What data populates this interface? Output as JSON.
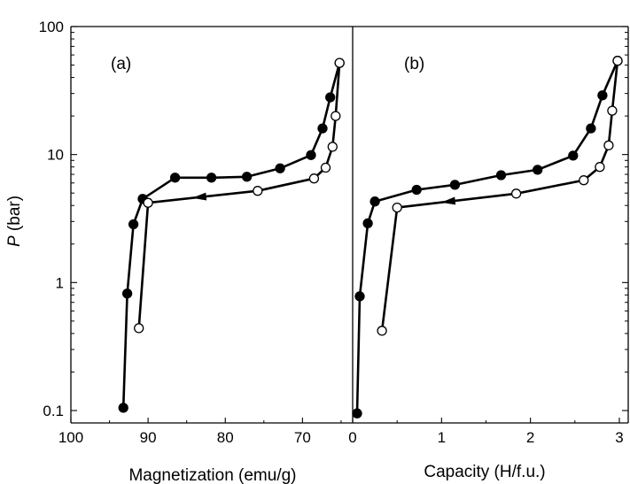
{
  "chart_data": [
    {
      "type": "scatter",
      "panel_label": "(a)",
      "xlabel": "Magnetization (emu/g)",
      "ylabel_symbol": "P",
      "ylabel_unit": " (bar)",
      "y_scale": "log",
      "xlim": [
        100,
        63.5
      ],
      "ylim": [
        0.08,
        100
      ],
      "x_ticks": [
        100,
        90,
        80,
        70
      ],
      "x_tick_labels": [
        "100",
        "90",
        "80",
        "70"
      ],
      "y_ticks": [
        0.1,
        1,
        10,
        100
      ],
      "y_tick_labels": [
        "0.1",
        "1",
        "10",
        "100"
      ],
      "grid": false,
      "series": [
        {
          "marker": "filled-circle",
          "x": [
            93.2,
            92.7,
            91.9,
            90.7,
            86.5,
            81.8,
            77.2,
            72.9,
            68.9,
            67.4,
            66.4,
            65.2
          ],
          "y": [
            0.105,
            0.82,
            2.85,
            4.5,
            6.6,
            6.6,
            6.7,
            7.8,
            9.9,
            16,
            28,
            52
          ]
        },
        {
          "marker": "open-circle",
          "arrow": "points-left",
          "x": [
            91.2,
            90.0,
            75.8,
            68.5,
            67.0,
            66.1,
            65.7,
            65.2
          ],
          "y": [
            0.44,
            4.2,
            5.2,
            6.5,
            7.9,
            11.5,
            20,
            52
          ]
        }
      ]
    },
    {
      "type": "scatter",
      "panel_label": "(b)",
      "xlabel": "Capacity (H/f.u.)",
      "y_scale": "log",
      "xlim": [
        0,
        3.1
      ],
      "ylim": [
        0.08,
        100
      ],
      "x_ticks": [
        0,
        1,
        2,
        3
      ],
      "x_tick_labels": [
        "0",
        "1",
        "2",
        "3"
      ],
      "grid": false,
      "series": [
        {
          "marker": "filled-circle",
          "x": [
            0.05,
            0.08,
            0.17,
            0.25,
            0.72,
            1.15,
            1.67,
            2.08,
            2.48,
            2.68,
            2.81,
            2.98
          ],
          "y": [
            0.095,
            0.78,
            2.9,
            4.3,
            5.3,
            5.8,
            6.9,
            7.6,
            9.8,
            16,
            29,
            54
          ]
        },
        {
          "marker": "open-circle",
          "arrow": "points-left",
          "x": [
            0.33,
            0.5,
            1.84,
            2.6,
            2.78,
            2.88,
            2.92,
            2.98
          ],
          "y": [
            0.42,
            3.85,
            4.95,
            6.3,
            8.0,
            11.8,
            22,
            54
          ]
        }
      ]
    }
  ]
}
